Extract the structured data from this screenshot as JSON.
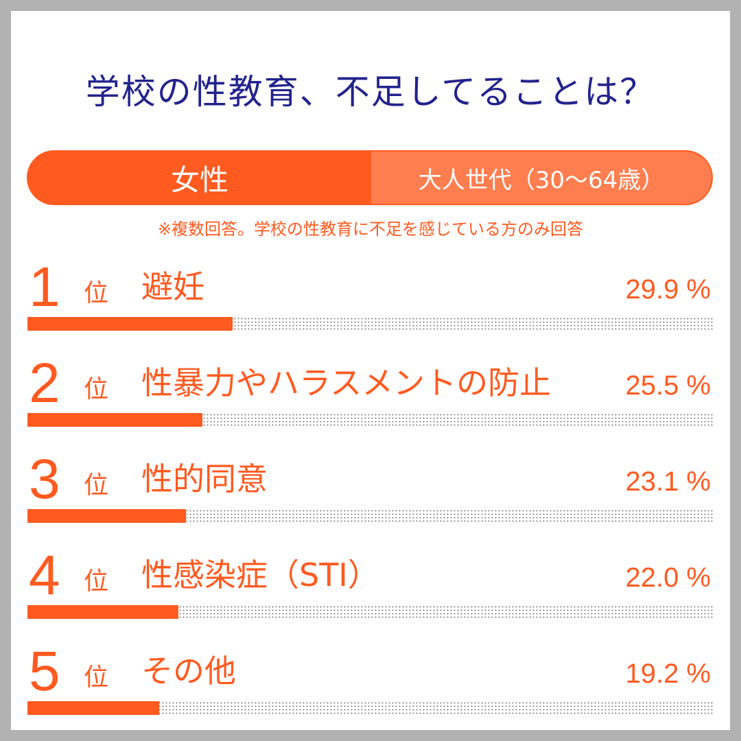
{
  "title": "学校の性教育、不足してることは？",
  "segment": {
    "gender": "女性",
    "age_group": "大人世代（30〜64歳）"
  },
  "note": "※複数回答。学校の性教育に不足を感じている方のみ回答",
  "colors": {
    "accent": "#ff5a20",
    "accent_light": "#ff7e4f",
    "title": "#23238c"
  },
  "chart_data": {
    "type": "bar",
    "orientation": "horizontal",
    "unit": "%",
    "xlim": [
      0,
      100
    ],
    "categories": [
      "避妊",
      "性暴力やハラスメントの防止",
      "性的同意",
      "性感染症（STI）",
      "その他"
    ],
    "values": [
      29.9,
      25.5,
      23.1,
      22.0,
      19.2
    ],
    "rank_suffix": "位",
    "ranks": [
      {
        "num": "1",
        "label": "避妊",
        "value_text": "29.9 %"
      },
      {
        "num": "2",
        "label": "性暴力やハラスメントの防止",
        "value_text": "25.5 %"
      },
      {
        "num": "3",
        "label": "性的同意",
        "value_text": "23.1 %"
      },
      {
        "num": "4",
        "label": "性感染症（STI）",
        "value_text": "22.0 %"
      },
      {
        "num": "5",
        "label": "その他",
        "value_text": "19.2 %"
      }
    ]
  }
}
